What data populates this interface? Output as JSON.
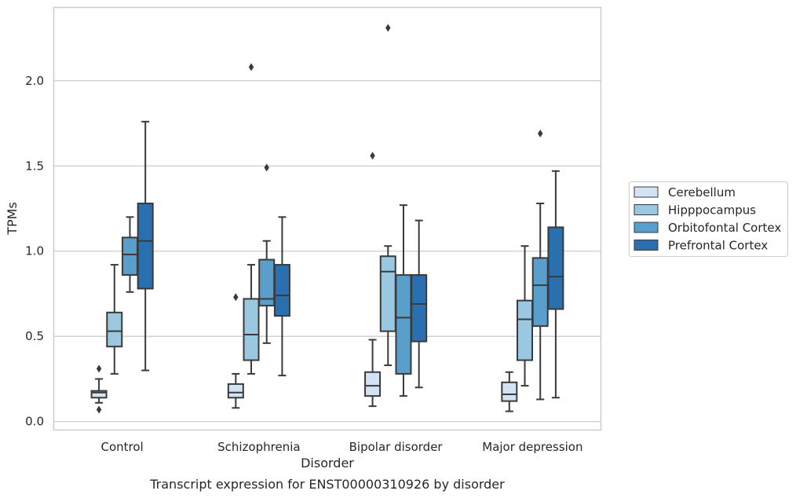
{
  "chart_data": {
    "type": "box",
    "caption": "Transcript expression for ENST00000310926 by disorder",
    "xlabel": "Disorder",
    "ylabel": "TPMs",
    "ylim": [
      -0.05,
      2.43
    ],
    "yticks": [
      0.0,
      0.5,
      1.0,
      1.5,
      2.0
    ],
    "ytick_labels": [
      "0.0",
      "0.5",
      "1.0",
      "1.5",
      "2.0"
    ],
    "grid": "horizontal",
    "legend_position": "right",
    "categories": [
      "Control",
      "Schizophrenia",
      "Bipolar disorder",
      "Major depression"
    ],
    "series": [
      {
        "name": "Cerebellum",
        "color": "#d4e3f3",
        "boxes": [
          {
            "whislo": 0.11,
            "q1": 0.14,
            "med": 0.17,
            "q3": 0.18,
            "whishi": 0.25,
            "fliers": [
              0.31,
              0.07
            ]
          },
          {
            "whislo": 0.08,
            "q1": 0.14,
            "med": 0.17,
            "q3": 0.22,
            "whishi": 0.28,
            "fliers": [
              0.73
            ]
          },
          {
            "whislo": 0.09,
            "q1": 0.15,
            "med": 0.21,
            "q3": 0.29,
            "whishi": 0.48,
            "fliers": [
              1.56
            ]
          },
          {
            "whislo": 0.06,
            "q1": 0.12,
            "med": 0.16,
            "q3": 0.23,
            "whishi": 0.29,
            "fliers": []
          }
        ]
      },
      {
        "name": "Hipppocampus",
        "color": "#9ac8e0",
        "boxes": [
          {
            "whislo": 0.28,
            "q1": 0.44,
            "med": 0.53,
            "q3": 0.64,
            "whishi": 0.92,
            "fliers": []
          },
          {
            "whislo": 0.28,
            "q1": 0.36,
            "med": 0.51,
            "q3": 0.72,
            "whishi": 0.92,
            "fliers": [
              2.08
            ]
          },
          {
            "whislo": 0.33,
            "q1": 0.53,
            "med": 0.88,
            "q3": 0.97,
            "whishi": 1.03,
            "fliers": [
              2.31
            ]
          },
          {
            "whislo": 0.21,
            "q1": 0.36,
            "med": 0.6,
            "q3": 0.71,
            "whishi": 1.03,
            "fliers": []
          }
        ]
      },
      {
        "name": "Orbitofontal Cortex",
        "color": "#5a9fcc",
        "boxes": [
          {
            "whislo": 0.76,
            "q1": 0.86,
            "med": 0.98,
            "q3": 1.08,
            "whishi": 1.2,
            "fliers": []
          },
          {
            "whislo": 0.46,
            "q1": 0.68,
            "med": 0.72,
            "q3": 0.95,
            "whishi": 1.06,
            "fliers": [
              1.49
            ]
          },
          {
            "whislo": 0.15,
            "q1": 0.28,
            "med": 0.61,
            "q3": 0.86,
            "whishi": 1.27,
            "fliers": []
          },
          {
            "whislo": 0.13,
            "q1": 0.56,
            "med": 0.8,
            "q3": 0.96,
            "whishi": 1.28,
            "fliers": [
              1.69
            ]
          }
        ]
      },
      {
        "name": "Prefrontal Cortex",
        "color": "#2a6fb0",
        "boxes": [
          {
            "whislo": 0.3,
            "q1": 0.78,
            "med": 1.06,
            "q3": 1.28,
            "whishi": 1.76,
            "fliers": []
          },
          {
            "whislo": 0.27,
            "q1": 0.62,
            "med": 0.74,
            "q3": 0.92,
            "whishi": 1.2,
            "fliers": []
          },
          {
            "whislo": 0.2,
            "q1": 0.47,
            "med": 0.69,
            "q3": 0.86,
            "whishi": 1.18,
            "fliers": []
          },
          {
            "whislo": 0.14,
            "q1": 0.66,
            "med": 0.85,
            "q3": 1.14,
            "whishi": 1.47,
            "fliers": []
          }
        ]
      }
    ]
  }
}
